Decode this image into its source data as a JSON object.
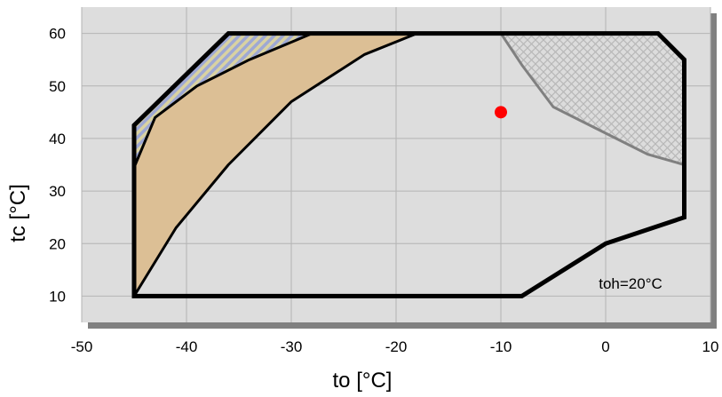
{
  "chart_data": {
    "type": "area",
    "xlabel": "to [°C]",
    "ylabel": "tc [°C]",
    "xlim": [
      -50,
      10
    ],
    "ylim": [
      5,
      65
    ],
    "xticks": [
      -50,
      -40,
      -30,
      -20,
      -10,
      0,
      10
    ],
    "yticks": [
      10,
      20,
      30,
      40,
      50,
      60
    ],
    "grid": true,
    "annotation": "toh=20°C",
    "envelope": [
      [
        -45,
        10
      ],
      [
        -45,
        42.5
      ],
      [
        -36,
        60
      ],
      [
        5,
        60
      ],
      [
        7.5,
        55
      ],
      [
        7.5,
        25
      ],
      [
        0,
        20
      ],
      [
        -8,
        10
      ],
      [
        -45,
        10
      ]
    ],
    "regions": [
      {
        "fill": "hatched-blue",
        "color": "#9ea8d4",
        "points": [
          [
            -45,
            42.5
          ],
          [
            -36,
            60
          ],
          [
            -28,
            60
          ],
          [
            -34,
            55
          ],
          [
            -39,
            50
          ],
          [
            -43,
            44
          ],
          [
            -45,
            34.5
          ]
        ]
      },
      {
        "fill": "solid",
        "color": "#dcbf95",
        "points": [
          [
            -45,
            34.5
          ],
          [
            -43,
            44
          ],
          [
            -39,
            50
          ],
          [
            -34,
            55
          ],
          [
            -28,
            60
          ],
          [
            -18,
            60
          ],
          [
            -23,
            56
          ],
          [
            -30,
            47
          ],
          [
            -36,
            35
          ],
          [
            -41,
            23
          ],
          [
            -45,
            10
          ]
        ]
      },
      {
        "fill": "crosshatch-gray",
        "color": "#c8c8c8",
        "points": [
          [
            -10,
            60
          ],
          [
            5,
            60
          ],
          [
            7.5,
            55
          ],
          [
            7.5,
            35
          ],
          [
            4,
            37
          ],
          [
            0,
            41
          ],
          [
            -5,
            46
          ],
          [
            -8,
            54
          ]
        ]
      }
    ],
    "curves": [
      {
        "color": "#000000",
        "points": [
          [
            -45,
            34.5
          ],
          [
            -43,
            44
          ],
          [
            -39,
            50
          ],
          [
            -34,
            55
          ],
          [
            -28,
            60
          ]
        ]
      },
      {
        "color": "#000000",
        "points": [
          [
            -45,
            10
          ],
          [
            -41,
            23
          ],
          [
            -36,
            35
          ],
          [
            -30,
            47
          ],
          [
            -23,
            56
          ],
          [
            -18,
            60
          ]
        ]
      },
      {
        "color": "#808080",
        "points": [
          [
            -10,
            60
          ],
          [
            -8,
            54
          ],
          [
            -5,
            46
          ],
          [
            0,
            41
          ],
          [
            4,
            37
          ],
          [
            7.5,
            35
          ]
        ]
      }
    ],
    "marker": {
      "x": -10,
      "y": 45,
      "color": "#ff0000"
    },
    "colors": {
      "plot_background": "#dddddd",
      "grid": "#b4b4b4",
      "shadow": "#808080",
      "envelope": "#000000",
      "blue_stripe": "#9ea8d4",
      "gray_hatch": "#bdbdbd"
    }
  }
}
